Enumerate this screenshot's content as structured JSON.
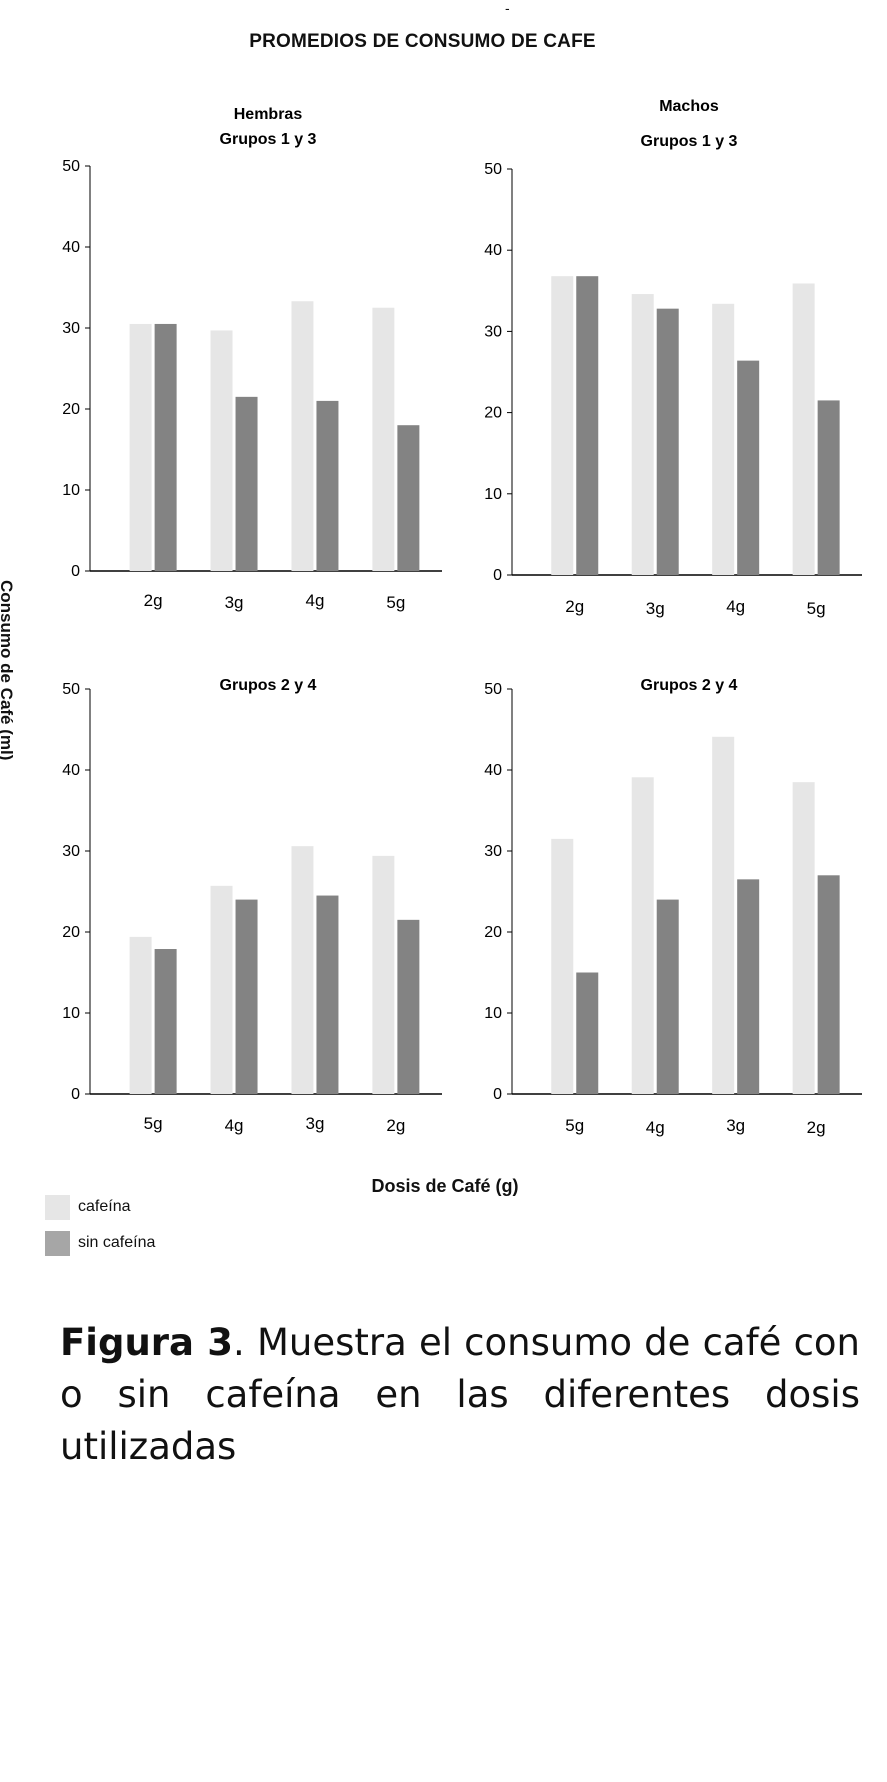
{
  "header": {
    "dash": "-",
    "title": "PROMEDIOS DE CONSUMO DE CAFE",
    "side_label": "Consumo de Café (ml)"
  },
  "x_axis_label": "Dosis de Café (g)",
  "legend": [
    {
      "label": "cafeína",
      "color": "#e6e6e6"
    },
    {
      "label": "sin cafeína",
      "color": "#a6a6a6"
    }
  ],
  "caption": {
    "bold": "Figura 3",
    "text": ". Muestra el consumo de café con o sin cafeína en las diferentes dosis utilizadas"
  },
  "colors": {
    "cafeina": "#e6e6e6",
    "sin_cafeina": "#838383",
    "axis": "#000000"
  },
  "chart_data": [
    {
      "type": "bar",
      "panel": "hembras-grupos-1-3",
      "group_title": "Hembras",
      "title": "Grupos 1 y 3",
      "categories": [
        "2g",
        "3g",
        "4g",
        "5g"
      ],
      "series": [
        {
          "name": "cafeína",
          "values": [
            30.5,
            29.7,
            33.3,
            32.5
          ]
        },
        {
          "name": "sin cafeína",
          "values": [
            30.5,
            21.5,
            21.0,
            18.0
          ]
        }
      ],
      "ylim": [
        0,
        50
      ],
      "yticks": [
        "0",
        "10",
        "20",
        "30",
        "40",
        "50"
      ]
    },
    {
      "type": "bar",
      "panel": "machos-grupos-1-3",
      "group_title": "Machos",
      "title": "Grupos 1 y 3",
      "categories": [
        "2g",
        "3g",
        "4g",
        "5g"
      ],
      "series": [
        {
          "name": "cafeína",
          "values": [
            36.8,
            34.6,
            33.4,
            35.9
          ]
        },
        {
          "name": "sin cafeína",
          "values": [
            36.8,
            32.8,
            26.4,
            21.5
          ]
        }
      ],
      "ylim": [
        0,
        50
      ],
      "yticks": [
        "0",
        "10",
        "20",
        "30",
        "40",
        "50"
      ]
    },
    {
      "type": "bar",
      "panel": "hembras-grupos-2-4",
      "group_title": "",
      "title": "Grupos 2 y 4",
      "categories": [
        "5g",
        "4g",
        "3g",
        "2g"
      ],
      "series": [
        {
          "name": "cafeína",
          "values": [
            19.4,
            25.7,
            30.6,
            29.4
          ]
        },
        {
          "name": "sin cafeína",
          "values": [
            17.9,
            24.0,
            24.5,
            21.5
          ]
        }
      ],
      "ylim": [
        0,
        50
      ],
      "yticks": [
        "0",
        "10",
        "20",
        "30",
        "40",
        "50"
      ]
    },
    {
      "type": "bar",
      "panel": "machos-grupos-2-4",
      "group_title": "",
      "title": "Grupos 2 y 4",
      "categories": [
        "5g",
        "4g",
        "3g",
        "2g"
      ],
      "series": [
        {
          "name": "cafeína",
          "values": [
            31.5,
            39.1,
            44.1,
            38.5
          ]
        },
        {
          "name": "sin cafeína",
          "values": [
            15.0,
            24.0,
            26.5,
            27.0
          ]
        }
      ],
      "ylim": [
        0,
        50
      ],
      "yticks": [
        "0",
        "10",
        "20",
        "30",
        "40",
        "50"
      ]
    }
  ]
}
